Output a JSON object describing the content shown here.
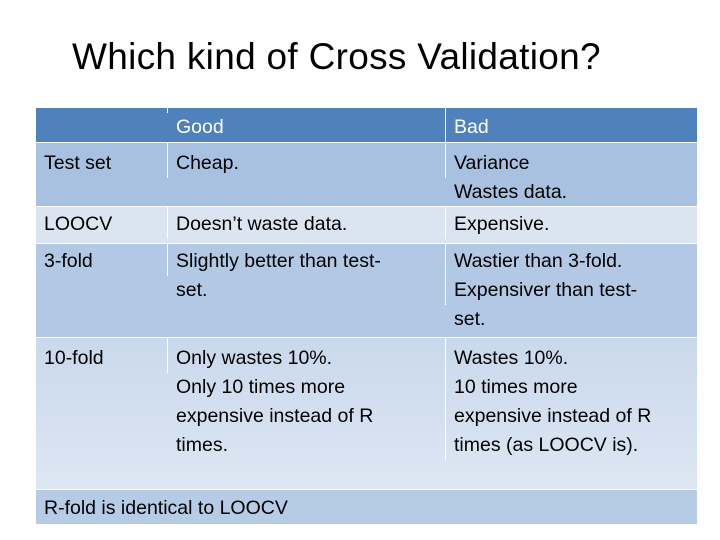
{
  "slide": {
    "title": "Which kind of Cross Validation?"
  },
  "table": {
    "header": [
      "",
      "Good",
      "Bad"
    ],
    "rows": [
      [
        "Test set",
        "Cheap.",
        "Variance\nWastes data."
      ],
      [
        "LOOCV",
        "Doesn’t waste data.",
        "Expensive."
      ],
      [
        "3-fold",
        "Slightly better than test-\nset.",
        "Wastier than 3-fold.\nExpensiver than test-\nset."
      ],
      [
        "10-fold",
        "Only wastes 10%.\nOnly 10 times more\nexpensive instead of R\ntimes.",
        "Wastes 10%.\n10 times more\nexpensive instead of R\ntimes (as LOOCV is)."
      ]
    ],
    "footer": "R-fold is identical to LOOCV"
  }
}
